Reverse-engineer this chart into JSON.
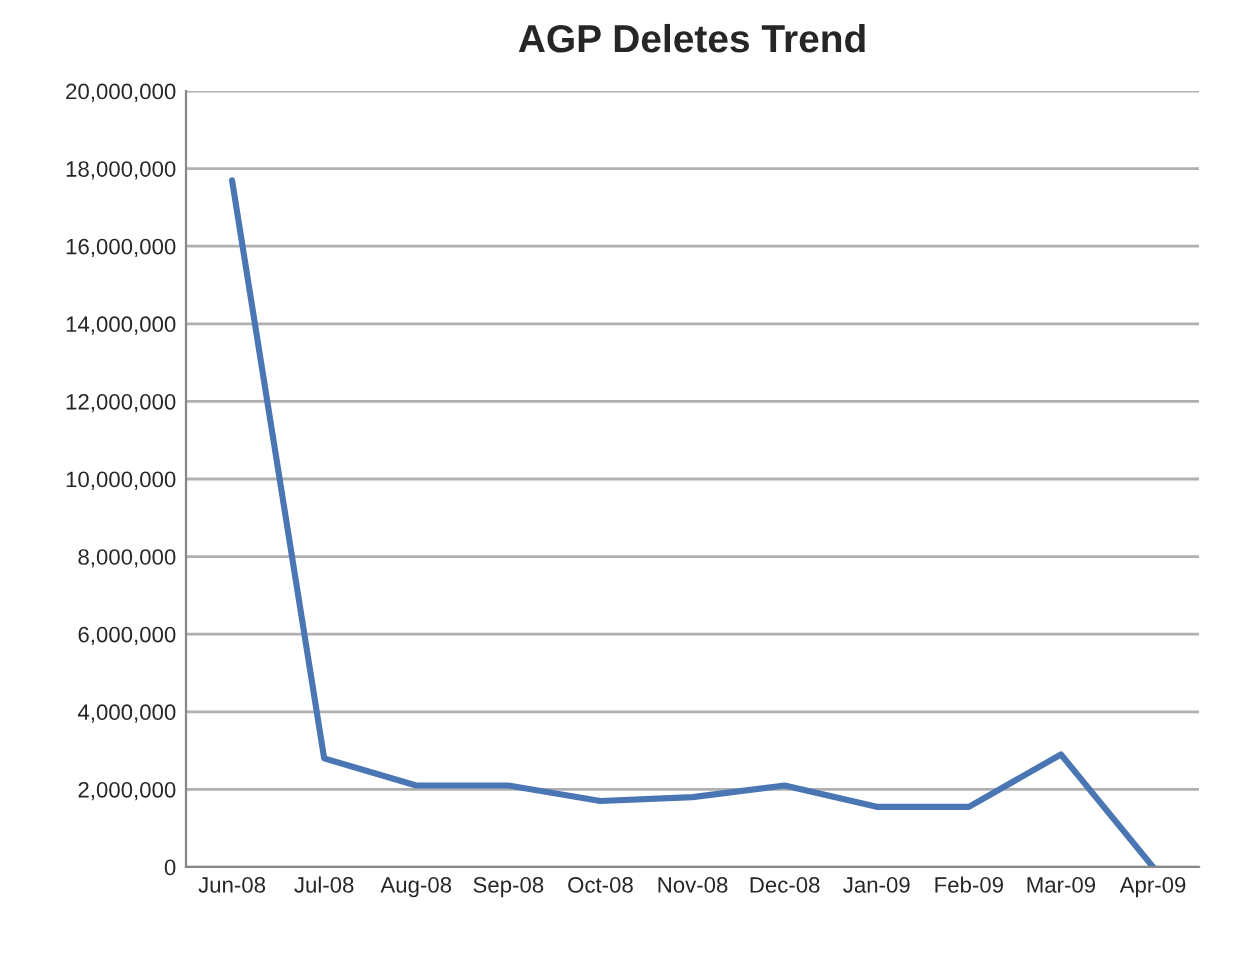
{
  "chart_data": {
    "type": "line",
    "title": "AGP Deletes Trend",
    "categories": [
      "Jun-08",
      "Jul-08",
      "Aug-08",
      "Sep-08",
      "Oct-08",
      "Nov-08",
      "Dec-08",
      "Jan-09",
      "Feb-09",
      "Mar-09",
      "Apr-09"
    ],
    "series": [
      {
        "color": "#4a76b3",
        "values": [
          17700000,
          2800000,
          2100000,
          2100000,
          1700000,
          1800000,
          2100000,
          1550000,
          1550000,
          2900000,
          0
        ]
      }
    ],
    "ylim": [
      0,
      20000000
    ],
    "yticks": [
      {
        "value": 0,
        "label": "0"
      },
      {
        "value": 2000000,
        "label": "2,000,000"
      },
      {
        "value": 4000000,
        "label": "4,000,000"
      },
      {
        "value": 6000000,
        "label": "6,000,000"
      },
      {
        "value": 8000000,
        "label": "8,000,000"
      },
      {
        "value": 10000000,
        "label": "10,000,000"
      },
      {
        "value": 12000000,
        "label": "12,000,000"
      },
      {
        "value": 14000000,
        "label": "14,000,000"
      },
      {
        "value": 16000000,
        "label": "16,000,000"
      },
      {
        "value": 18000000,
        "label": "18,000,000"
      },
      {
        "value": 20000000,
        "label": "20,000,000"
      }
    ],
    "grid": "y",
    "legend": false,
    "marker": "none",
    "line_style": "solid"
  }
}
